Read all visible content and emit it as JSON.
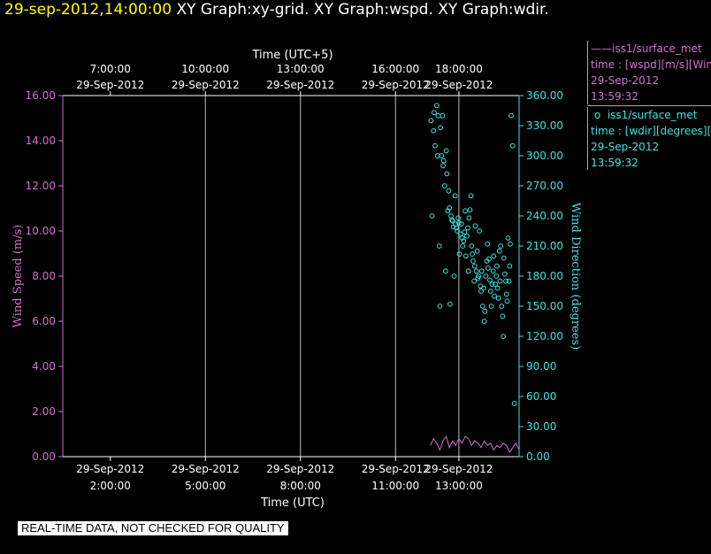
{
  "header": {
    "timestamp": "29-sep-2012,14:00:00",
    "graphs": "XY Graph:xy-grid.  XY Graph:wspd.  XY Graph:wdir."
  },
  "footer": {
    "quality_note": "REAL-TIME DATA, NOT CHECKED FOR QUALITY"
  },
  "legend": {
    "entries": [
      {
        "marker": "——",
        "source": "iss1/surface_met",
        "var": "time : [wspd][m/s][Wind",
        "date": "29-Sep-2012",
        "time": "13:59:32"
      },
      {
        "marker": "o",
        "source": "iss1/surface_met",
        "var": "time : [wdir][degrees][W",
        "date": "29-Sep-2012",
        "time": "13:59:32"
      }
    ]
  },
  "colors": {
    "wspd": "#d070d0",
    "wdir": "#40e0e0",
    "grid": "#bbbbbb",
    "axis": "#ffffff",
    "background": "#000000"
  },
  "chart_data": {
    "type": "scatter",
    "x_axis_bottom": {
      "label": "Time (UTC)",
      "range_hours": [
        0.5,
        14.9
      ],
      "ticks": [
        {
          "hour": 2,
          "date": "29-Sep-2012",
          "time": "2:00:00"
        },
        {
          "hour": 5,
          "date": "29-Sep-2012",
          "time": "5:00:00"
        },
        {
          "hour": 8,
          "date": "29-Sep-2012",
          "time": "8:00:00"
        },
        {
          "hour": 11,
          "date": "29-Sep-2012",
          "time": "11:00:00"
        },
        {
          "hour": 13,
          "date": "29-Sep-2012",
          "time": "13:00:00"
        }
      ]
    },
    "x_axis_top": {
      "label": "Time (UTC+5)",
      "ticks": [
        {
          "hour": 2,
          "time": "7:00:00",
          "date": "29-Sep-2012"
        },
        {
          "hour": 5,
          "time": "10:00:00",
          "date": "29-Sep-2012"
        },
        {
          "hour": 8,
          "time": "13:00:00",
          "date": "29-Sep-2012"
        },
        {
          "hour": 11,
          "time": "16:00:00",
          "date": "29-Sep-2012"
        },
        {
          "hour": 13,
          "time": "18:00:00",
          "date": "29-Sep-2012"
        }
      ]
    },
    "y_axis_left": {
      "label": "Wind Speed (m/s)",
      "range": [
        0,
        16
      ],
      "ticks": [
        "0.00",
        "2.00",
        "4.00",
        "6.00",
        "8.00",
        "10.00",
        "12.00",
        "14.00",
        "16.00"
      ]
    },
    "y_axis_right": {
      "label": "Wind Direction (degrees)",
      "range": [
        0,
        360
      ],
      "ticks": [
        "0.00",
        "30.00",
        "60.00",
        "90.00",
        "120.00",
        "150.00",
        "180.00",
        "210.00",
        "240.00",
        "270.00",
        "300.00",
        "330.00",
        "360.00"
      ]
    },
    "grid_hours": [
      5,
      8,
      11,
      13
    ],
    "series": [
      {
        "name": "iss1/surface_met wspd",
        "style": "line",
        "axis": "left",
        "x": [
          12.1,
          12.2,
          12.3,
          12.4,
          12.5,
          12.6,
          12.7,
          12.8,
          12.9,
          13.0,
          13.1,
          13.2,
          13.3,
          13.4,
          13.5,
          13.6,
          13.7,
          13.8,
          13.9,
          14.0,
          14.1,
          14.2,
          14.3,
          14.4,
          14.5,
          14.6,
          14.7,
          14.8,
          14.9
        ],
        "values": [
          0.5,
          0.8,
          0.6,
          0.3,
          0.7,
          0.9,
          0.4,
          0.7,
          0.5,
          0.8,
          0.6,
          0.9,
          0.8,
          0.5,
          0.7,
          0.6,
          0.4,
          0.7,
          0.5,
          0.6,
          0.3,
          0.5,
          0.4,
          0.6,
          0.5,
          0.2,
          0.4,
          0.6,
          0.3
        ]
      },
      {
        "name": "iss1/surface_met wdir",
        "style": "circles",
        "axis": "right",
        "x": [
          12.12,
          12.15,
          12.2,
          12.22,
          12.25,
          12.3,
          12.33,
          12.35,
          12.38,
          12.4,
          12.42,
          12.45,
          12.48,
          12.5,
          12.52,
          12.55,
          12.58,
          12.6,
          12.62,
          12.65,
          12.68,
          12.7,
          12.72,
          12.75,
          12.78,
          12.8,
          12.82,
          12.85,
          12.88,
          12.9,
          12.92,
          12.95,
          12.98,
          13.0,
          13.02,
          13.05,
          13.08,
          13.1,
          13.12,
          13.15,
          13.18,
          13.2,
          13.22,
          13.25,
          13.28,
          13.3,
          13.32,
          13.35,
          13.38,
          13.4,
          13.42,
          13.45,
          13.48,
          13.5,
          13.52,
          13.55,
          13.58,
          13.6,
          13.62,
          13.65,
          13.68,
          13.7,
          13.72,
          13.75,
          13.78,
          13.8,
          13.82,
          13.85,
          13.88,
          13.9,
          13.92,
          13.95,
          13.98,
          14.0,
          14.02,
          14.05,
          14.08,
          14.1,
          14.12,
          14.15,
          14.18,
          14.2,
          14.22,
          14.25,
          14.28,
          14.3,
          14.32,
          14.35,
          14.38,
          14.4,
          14.42,
          14.45,
          14.48,
          14.5,
          14.52,
          14.55,
          14.58,
          14.6,
          14.62,
          14.65,
          14.7,
          14.75
        ],
        "values": [
          335,
          240,
          325,
          343,
          310,
          350,
          300,
          340,
          210,
          150,
          328,
          300,
          340,
          290,
          295,
          270,
          185,
          305,
          282,
          245,
          265,
          248,
          152,
          240,
          236,
          235,
          229,
          180,
          260,
          232,
          228,
          225,
          238,
          233,
          202,
          222,
          232,
          218,
          210,
          215,
          224,
          245,
          200,
          220,
          228,
          185,
          238,
          246,
          260,
          210,
          202,
          195,
          175,
          190,
          230,
          185,
          205,
          178,
          180,
          225,
          170,
          165,
          185,
          150,
          168,
          135,
          145,
          180,
          195,
          212,
          188,
          197,
          176,
          165,
          150,
          172,
          185,
          200,
          160,
          172,
          180,
          190,
          168,
          158,
          205,
          175,
          210,
          150,
          140,
          120,
          198,
          182,
          175,
          162,
          155,
          218,
          175,
          190,
          212,
          340,
          310,
          53
        ]
      }
    ]
  }
}
